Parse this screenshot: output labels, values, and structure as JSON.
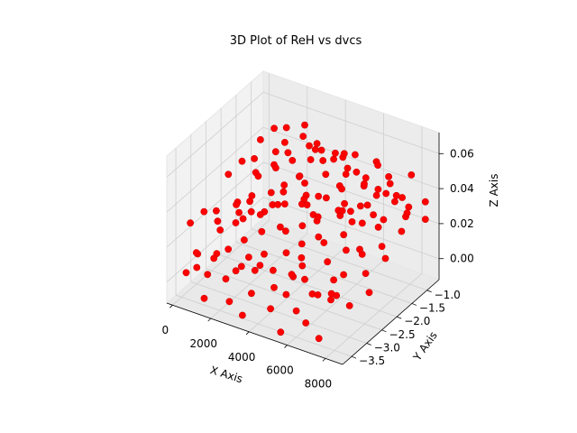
{
  "chart_data": {
    "type": "scatter",
    "projection": "3d",
    "title": "3D Plot of ReH vs dvcs",
    "xlabel": "X Axis",
    "ylabel": "Y Axis",
    "zlabel": "Z Axis",
    "xlim": [
      -300,
      8900
    ],
    "ylim": [
      -3.8,
      -0.6
    ],
    "zlim": [
      -0.012,
      0.072
    ],
    "x_ticks": [
      0,
      2000,
      4000,
      6000,
      8000
    ],
    "x_tick_labels": [
      "0",
      "2000",
      "4000",
      "6000",
      "8000"
    ],
    "y_ticks": [
      -3.5,
      -3.0,
      -2.5,
      -2.0,
      -1.5,
      -1.0
    ],
    "y_tick_labels": [
      "−3.5",
      "−3.0",
      "−2.5",
      "−2.0",
      "−1.5",
      "−1.0"
    ],
    "z_ticks": [
      0.0,
      0.02,
      0.04,
      0.06
    ],
    "z_tick_labels": [
      "0.00",
      "0.02",
      "0.04",
      "0.06"
    ],
    "grid": true,
    "marker_color": "#ff0000",
    "pane_color": "#f2f2f2",
    "grid_color": "#cfcfcf",
    "series": [
      {
        "points": [
          [
            400,
            -3.6,
            0.005
          ],
          [
            800,
            -3.5,
            0.008
          ],
          [
            1200,
            -3.4,
            0.004
          ],
          [
            300,
            -3.2,
            0.01
          ],
          [
            900,
            -3.0,
            0.006
          ],
          [
            1500,
            -2.9,
            0.012
          ],
          [
            2000,
            -3.3,
            0.003
          ],
          [
            2500,
            -3.1,
            0.009
          ],
          [
            3000,
            -2.8,
            0.007
          ],
          [
            3500,
            -3.4,
            0.002
          ],
          [
            4000,
            -3.0,
            0.011
          ],
          [
            4500,
            -2.7,
            0.006
          ],
          [
            5000,
            -3.2,
            0.004
          ],
          [
            5500,
            -2.9,
            0.01
          ],
          [
            6000,
            -3.5,
            0.003
          ],
          [
            6500,
            -3.1,
            0.008
          ],
          [
            7000,
            -2.8,
            0.005
          ],
          [
            7500,
            -3.3,
            0.012
          ],
          [
            8000,
            -3.0,
            0.006
          ],
          [
            8400,
            -2.6,
            0.009
          ],
          [
            600,
            -2.6,
            0.015
          ],
          [
            1100,
            -2.4,
            0.018
          ],
          [
            1700,
            -2.5,
            0.012
          ],
          [
            2300,
            -2.3,
            0.016
          ],
          [
            2900,
            -2.6,
            0.01
          ],
          [
            3400,
            -2.2,
            0.019
          ],
          [
            3900,
            -2.5,
            0.013
          ],
          [
            4400,
            -2.3,
            0.017
          ],
          [
            4900,
            -2.6,
            0.011
          ],
          [
            5400,
            -2.2,
            0.02
          ],
          [
            5900,
            -2.4,
            0.014
          ],
          [
            6400,
            -2.1,
            0.018
          ],
          [
            6900,
            -2.5,
            0.012
          ],
          [
            7400,
            -2.2,
            0.021
          ],
          [
            7900,
            -2.4,
            0.015
          ],
          [
            8300,
            -2.0,
            0.019
          ],
          [
            500,
            -2.0,
            0.02
          ],
          [
            1000,
            -1.8,
            0.024
          ],
          [
            1600,
            -1.9,
            0.017
          ],
          [
            2200,
            -1.7,
            0.022
          ],
          [
            2800,
            -2.0,
            0.016
          ],
          [
            3300,
            -1.6,
            0.025
          ],
          [
            3800,
            -1.9,
            0.019
          ],
          [
            4300,
            -1.7,
            0.023
          ],
          [
            4800,
            -2.0,
            0.018
          ],
          [
            5300,
            -1.6,
            0.026
          ],
          [
            5800,
            -1.8,
            0.02
          ],
          [
            6300,
            -1.5,
            0.024
          ],
          [
            6800,
            -1.9,
            0.017
          ],
          [
            7300,
            -1.6,
            0.027
          ],
          [
            7800,
            -1.8,
            0.021
          ],
          [
            8200,
            -1.4,
            0.025
          ],
          [
            700,
            -1.4,
            0.028
          ],
          [
            1300,
            -1.2,
            0.032
          ],
          [
            1900,
            -1.3,
            0.026
          ],
          [
            2400,
            -1.1,
            0.03
          ],
          [
            3100,
            -1.4,
            0.024
          ],
          [
            3600,
            -1.0,
            0.034
          ],
          [
            4100,
            -1.3,
            0.027
          ],
          [
            4600,
            -1.1,
            0.031
          ],
          [
            5100,
            -1.4,
            0.025
          ],
          [
            5600,
            -1.0,
            0.035
          ],
          [
            6100,
            -1.2,
            0.029
          ],
          [
            6600,
            -0.9,
            0.033
          ],
          [
            7100,
            -1.3,
            0.026
          ],
          [
            7600,
            -1.0,
            0.036
          ],
          [
            8100,
            -1.2,
            0.03
          ],
          [
            8500,
            -0.8,
            0.034
          ],
          [
            300,
            -3.4,
            0.03
          ],
          [
            700,
            -3.2,
            0.035
          ],
          [
            1100,
            -3.0,
            0.028
          ],
          [
            1500,
            -3.3,
            0.04
          ],
          [
            1900,
            -2.8,
            0.033
          ],
          [
            2300,
            -3.1,
            0.045
          ],
          [
            2700,
            -2.9,
            0.038
          ],
          [
            3100,
            -3.2,
            0.05
          ],
          [
            3500,
            -2.7,
            0.042
          ],
          [
            3900,
            -3.0,
            0.055
          ],
          [
            4300,
            -2.8,
            0.047
          ],
          [
            4700,
            -3.1,
            0.06
          ],
          [
            5100,
            -2.6,
            0.052
          ],
          [
            5500,
            -2.9,
            0.065
          ],
          [
            5900,
            -2.7,
            0.056
          ],
          [
            6300,
            -3.0,
            0.048
          ],
          [
            6700,
            -2.5,
            0.062
          ],
          [
            7100,
            -2.8,
            0.054
          ],
          [
            7500,
            -2.6,
            0.046
          ],
          [
            7900,
            -2.9,
            0.058
          ],
          [
            8300,
            -2.4,
            0.05
          ],
          [
            400,
            -2.2,
            0.04
          ],
          [
            800,
            -2.0,
            0.046
          ],
          [
            1200,
            -1.8,
            0.038
          ],
          [
            1600,
            -2.1,
            0.052
          ],
          [
            2000,
            -1.7,
            0.044
          ],
          [
            2400,
            -1.9,
            0.056
          ],
          [
            2800,
            -1.6,
            0.048
          ],
          [
            3200,
            -2.0,
            0.06
          ],
          [
            3600,
            -1.5,
            0.05
          ],
          [
            4000,
            -1.8,
            0.064
          ],
          [
            4400,
            -1.6,
            0.054
          ],
          [
            4800,
            -1.9,
            0.066
          ],
          [
            5200,
            -1.4,
            0.058
          ],
          [
            5600,
            -1.7,
            0.062
          ],
          [
            6000,
            -1.5,
            0.052
          ],
          [
            6400,
            -1.8,
            0.068
          ],
          [
            6800,
            -1.3,
            0.056
          ],
          [
            7200,
            -1.6,
            0.064
          ],
          [
            7600,
            -1.4,
            0.05
          ],
          [
            8000,
            -1.7,
            0.06
          ],
          [
            8400,
            -1.2,
            0.055
          ],
          [
            500,
            -1.2,
            0.045
          ],
          [
            900,
            -1.0,
            0.05
          ],
          [
            1300,
            -0.9,
            0.042
          ],
          [
            1700,
            -1.1,
            0.055
          ],
          [
            2100,
            -0.8,
            0.047
          ],
          [
            2500,
            -1.0,
            0.058
          ],
          [
            2900,
            -0.9,
            0.044
          ],
          [
            3300,
            -1.1,
            0.052
          ],
          [
            3700,
            -0.8,
            0.04
          ],
          [
            4100,
            -1.0,
            0.048
          ],
          [
            4500,
            -0.9,
            0.036
          ],
          [
            4900,
            -1.1,
            0.044
          ],
          [
            5300,
            -0.8,
            0.032
          ],
          [
            5700,
            -1.0,
            0.04
          ],
          [
            6100,
            -0.9,
            0.03
          ],
          [
            6500,
            -1.1,
            0.038
          ],
          [
            6900,
            -0.8,
            0.028
          ],
          [
            7300,
            -1.0,
            0.036
          ],
          [
            7700,
            -0.9,
            0.026
          ],
          [
            8100,
            -1.1,
            0.034
          ],
          [
            8500,
            -0.8,
            0.024
          ],
          [
            1000,
            -3.6,
            0.018
          ],
          [
            2000,
            -3.6,
            0.022
          ],
          [
            3000,
            -3.6,
            0.016
          ],
          [
            4000,
            -3.6,
            0.02
          ],
          [
            5000,
            -3.6,
            0.014
          ],
          [
            6000,
            -3.6,
            0.024
          ],
          [
            7000,
            -3.6,
            0.018
          ],
          [
            8000,
            -3.6,
            0.022
          ],
          [
            1500,
            -3.7,
            -0.004
          ],
          [
            3500,
            -3.7,
            -0.006
          ],
          [
            5500,
            -3.7,
            -0.008
          ],
          [
            7500,
            -3.7,
            -0.004
          ],
          [
            6500,
            -3.5,
            -0.002
          ],
          [
            4500,
            -3.4,
            -0.003
          ],
          [
            2500,
            -3.5,
            -0.005
          ],
          [
            3000,
            -1.5,
            0.038
          ],
          [
            5000,
            -2.3,
            0.036
          ],
          [
            6000,
            -1.9,
            0.04
          ],
          [
            7000,
            -2.0,
            0.044
          ],
          [
            2600,
            -2.4,
            0.03
          ],
          [
            4200,
            -2.0,
            0.034
          ],
          [
            5800,
            -3.2,
            0.028
          ],
          [
            7800,
            -3.4,
            0.026
          ],
          [
            1800,
            -2.6,
            0.026
          ],
          [
            3200,
            -3.3,
            0.02
          ]
        ]
      }
    ]
  }
}
